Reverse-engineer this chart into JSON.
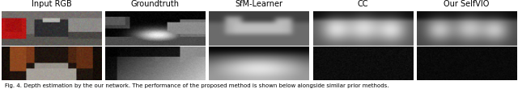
{
  "title_labels": [
    "Input RGB",
    "Groundtruth",
    "SfM-Learner",
    "CC",
    "Our SelfVIO"
  ],
  "fig_width": 6.4,
  "fig_height": 1.11,
  "dpi": 100,
  "n_cols": 5,
  "n_rows": 2,
  "title_fontsize": 7.0,
  "caption_text": "Fig. 4. Depth estimation by the our network. The performance of the proposed method is shown below alongside similar prior methods."
}
